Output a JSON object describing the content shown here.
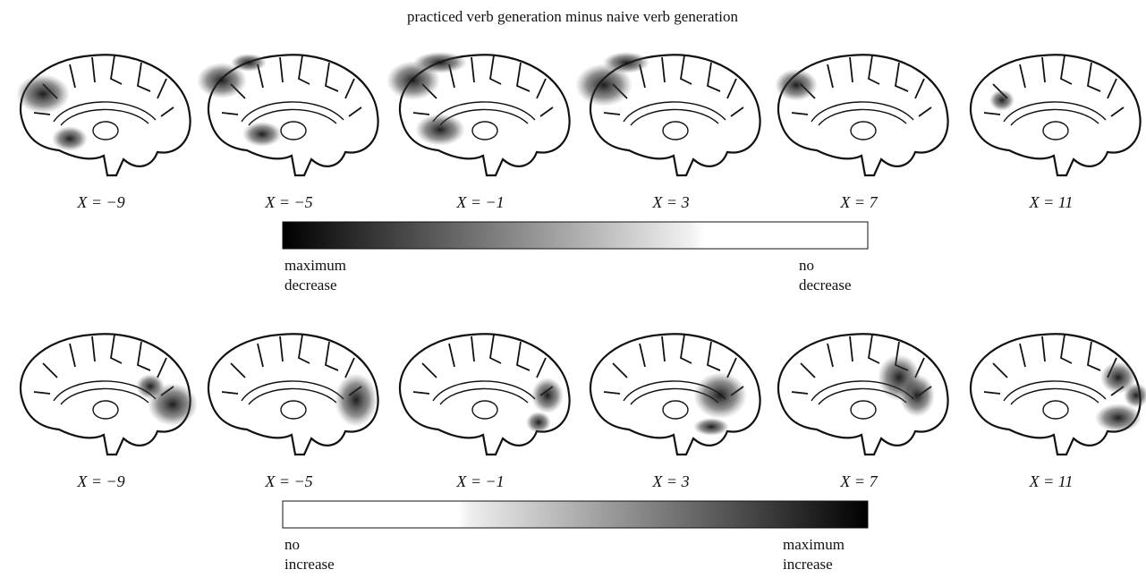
{
  "title": "practiced verb generation minus naive verb generation",
  "panels": [
    {
      "slices": [
        "X = −9",
        "X = −5",
        "X = −1",
        "X = 3",
        "X = 7",
        "X = 11"
      ],
      "scale": {
        "left_label": [
          "maximum",
          "decrease"
        ],
        "right_label": [
          "no",
          "decrease"
        ]
      }
    },
    {
      "slices": [
        "X = −9",
        "X = −5",
        "X = −1",
        "X = 3",
        "X = 7",
        "X = 11"
      ],
      "scale": {
        "left_label": [
          "no",
          "increase"
        ],
        "right_label": [
          "maximum",
          "increase"
        ]
      }
    }
  ]
}
